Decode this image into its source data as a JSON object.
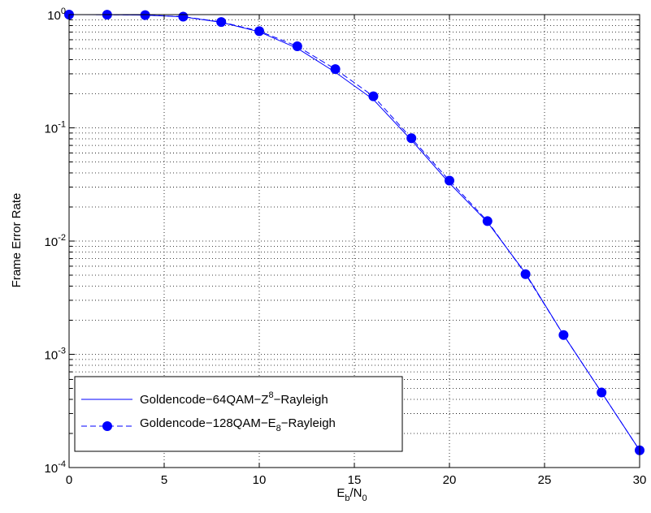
{
  "chart_data": {
    "type": "line",
    "title": "",
    "xlabel": {
      "base": "E",
      "sub1": "b",
      "sep": "/N",
      "sub2": "0"
    },
    "ylabel": "Frame Error Rate",
    "xlim": [
      0,
      30
    ],
    "ylim": [
      0.0001,
      1
    ],
    "yscale": "log",
    "grid": true,
    "legend_position": "bottom-left",
    "x_ticks": [
      "0",
      "5",
      "10",
      "15",
      "20",
      "25",
      "30"
    ],
    "y_ticks": [
      {
        "base": "10",
        "exp": "0"
      },
      {
        "base": "10",
        "exp": "-1"
      },
      {
        "base": "10",
        "exp": "-2"
      },
      {
        "base": "10",
        "exp": "-3"
      },
      {
        "base": "10",
        "exp": "-4"
      }
    ],
    "colors": {
      "series": "#0000ff",
      "grid": "#000000"
    },
    "series": [
      {
        "name": "Goldencode-64QAM-Z8-Rayleigh",
        "legend_parts": {
          "pre": "Goldencode−64QAM−Z",
          "sup": "8",
          "post": "−Rayleigh"
        },
        "style": "solid",
        "marker": "none",
        "x": [
          0,
          2,
          4,
          6,
          8,
          10,
          12,
          14,
          16,
          18,
          20,
          22,
          24,
          26,
          28,
          30
        ],
        "y": [
          0.9999,
          0.998,
          0.99,
          0.955,
          0.855,
          0.705,
          0.505,
          0.31,
          0.178,
          0.078,
          0.0325,
          0.0147,
          0.0052,
          0.00148,
          0.00046,
          0.000142
        ]
      },
      {
        "name": "Goldencode-128QAM-E8-Rayleigh",
        "legend_parts": {
          "pre": "Goldencode−128QAM−E",
          "sub": "8",
          "post": "−Rayleigh"
        },
        "style": "dashed",
        "marker": "circle",
        "x": [
          0,
          2,
          4,
          6,
          8,
          10,
          12,
          14,
          16,
          18,
          20,
          22,
          24,
          26,
          28,
          30
        ],
        "y": [
          0.9999,
          0.998,
          0.99,
          0.96,
          0.86,
          0.715,
          0.525,
          0.33,
          0.19,
          0.081,
          0.0342,
          0.015,
          0.0051,
          0.00148,
          0.00046,
          0.000142
        ]
      }
    ]
  }
}
